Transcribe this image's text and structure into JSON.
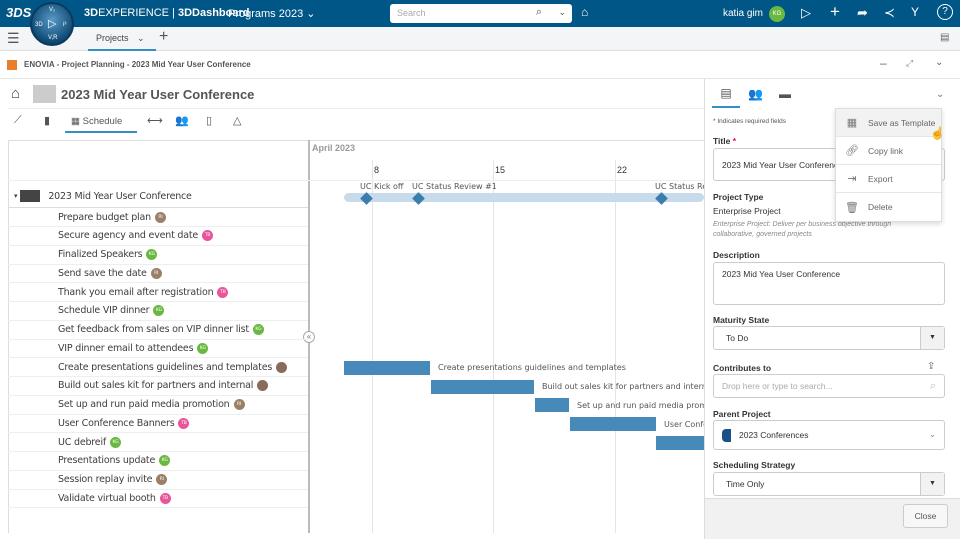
{
  "topbar": {
    "brand_bold": "3D",
    "brand": "EXPERIENCE | ",
    "app": "3DDashboard",
    "dashboard": "Programs 2023",
    "search_placeholder": "Search",
    "user": "katia gim",
    "user_initials": "KG",
    "compass": {
      "top": "V₁",
      "left": "3D",
      "right": "i³",
      "bottom": "V,R"
    }
  },
  "tabs": {
    "active": "Projects"
  },
  "widget": {
    "title": "ENOVIA - Project Planning - 2023 Mid Year User Conference"
  },
  "project": {
    "title": "2023 Mid Year User Conference",
    "tabs": [
      "Schedule"
    ]
  },
  "gantt": {
    "month": "April 2023",
    "days": [
      "8",
      "15",
      "22"
    ],
    "root": "2023 Mid Year User Conference",
    "milestones": [
      "UC Kick off",
      "UC Status Review #1",
      "UC Status Re"
    ],
    "tasks": [
      {
        "name": "Prepare budget plan",
        "initials": "RI",
        "color": "#9b8068"
      },
      {
        "name": "Secure agency and event date",
        "initials": "TB",
        "color": "#e8559a"
      },
      {
        "name": "Finalized Speakers",
        "initials": "KG",
        "color": "#6ab842"
      },
      {
        "name": "Send save the date",
        "initials": "RI",
        "color": "#9b8068"
      },
      {
        "name": "Thank you email after registration",
        "initials": "TB",
        "color": "#e8559a"
      },
      {
        "name": "Schedule VIP dinner",
        "initials": "KG",
        "color": "#6ab842"
      },
      {
        "name": "Get feedback from sales on VIP dinner list",
        "initials": "KG",
        "color": "#6ab842"
      },
      {
        "name": "VIP dinner email to attendees",
        "initials": "KG",
        "color": "#6ab842"
      },
      {
        "name": "Create presentations guidelines and templates",
        "initials": "",
        "color": "#8a6a5a"
      },
      {
        "name": "Build out sales kit for partners and internal",
        "initials": "",
        "color": "#8a6a5a"
      },
      {
        "name": "Set up and run paid media promotion",
        "initials": "RI",
        "color": "#9b8068"
      },
      {
        "name": "User Conference Banners",
        "initials": "TB",
        "color": "#e8559a"
      },
      {
        "name": "UC debreif",
        "initials": "KG",
        "color": "#6ab842"
      },
      {
        "name": "Presentations update",
        "initials": "KG",
        "color": "#6ab842"
      },
      {
        "name": "Session replay invite",
        "initials": "RI",
        "color": "#9b8068"
      },
      {
        "name": "Validate virtual booth",
        "initials": "TB",
        "color": "#e8559a"
      }
    ],
    "bar_labels": [
      "Create presentations guidelines and templates",
      "Build out sales kit for partners and internal",
      "Set up and run paid media promo",
      "User Confe"
    ]
  },
  "panel": {
    "required_note": "* Indicates required fields",
    "title_label": "Title",
    "title_value": "2023 Mid Year User Conference",
    "type_label": "Project Type",
    "type_value": "Enterprise Project",
    "type_desc": "Enterprise Project: Deliver per business objective through collaborative, governed projects",
    "desc_label": "Description",
    "desc_value": "2023 Mid Yea User Conference",
    "maturity_label": "Maturity State",
    "maturity_value": "To Do",
    "contrib_label": "Contributes to",
    "contrib_placeholder": "Drop here or type to search...",
    "parent_label": "Parent Project",
    "parent_value": "2023 Conferences",
    "strategy_label": "Scheduling Strategy",
    "strategy_value": "Time Only",
    "close": "Close"
  },
  "menu": [
    {
      "label": "Save as Template",
      "icon": "grid-icon"
    },
    {
      "label": "Copy link",
      "icon": "link-icon"
    },
    {
      "label": "Export",
      "icon": "export-icon"
    },
    {
      "label": "Delete",
      "icon": "trash-icon"
    }
  ]
}
